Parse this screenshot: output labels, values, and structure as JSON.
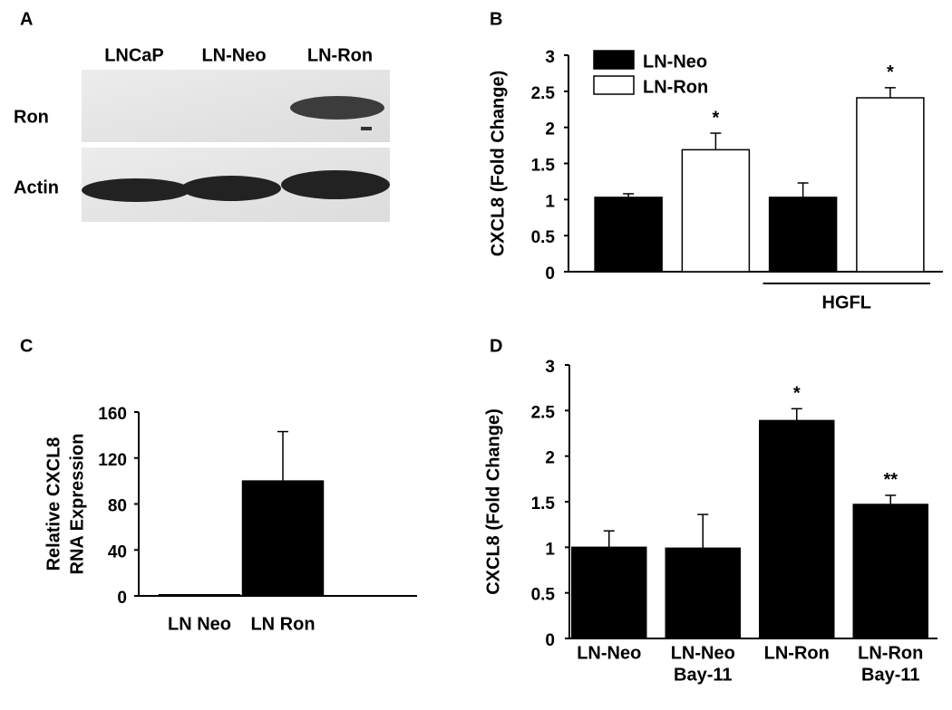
{
  "blot": {
    "panel": "A",
    "lanes": [
      "LNCaP",
      "LN-Neo",
      "LN-Ron"
    ],
    "rows": [
      "Ron",
      "Actin"
    ]
  },
  "chart_data": [
    {
      "type": "bar",
      "panel": "B",
      "ylabel": "CXCL8 (Fold Change)",
      "categories": [
        null,
        "HGFL"
      ],
      "series": [
        {
          "name": "LN-Neo",
          "color": "#000000",
          "values": [
            1.03,
            1.03
          ],
          "errors": [
            0.05,
            0.2
          ],
          "annotations": [
            null,
            null
          ]
        },
        {
          "name": "LN-Ron",
          "color": "#ffffff",
          "values": [
            1.69,
            2.41
          ],
          "errors": [
            0.23,
            0.14
          ],
          "annotations": [
            "*",
            "*"
          ]
        }
      ],
      "ylim": [
        0,
        3
      ],
      "yticks": [
        0,
        0.5,
        1,
        1.5,
        2,
        2.5,
        3
      ],
      "legend": "top-left"
    },
    {
      "type": "bar",
      "panel": "C",
      "ylabel": [
        "Relative CXCL8",
        "RNA Expression"
      ],
      "categories": [
        [
          "LN Neo"
        ],
        [
          "LN Ron"
        ]
      ],
      "series": [
        {
          "color": "#000000",
          "values": [
            1,
            100
          ],
          "errors": [
            null,
            43
          ],
          "annotations": [
            null,
            null
          ]
        }
      ],
      "ylim": [
        0,
        160
      ],
      "yticks": [
        0,
        40,
        80,
        120,
        160
      ]
    },
    {
      "type": "bar",
      "panel": "D",
      "ylabel": "CXCL8 (Fold Change)",
      "categories": [
        [
          "LN-Neo"
        ],
        [
          "LN-Neo",
          "Bay-11"
        ],
        [
          "LN-Ron"
        ],
        [
          "LN-Ron",
          "Bay-11"
        ]
      ],
      "series": [
        {
          "color": "#000000",
          "values": [
            1.0,
            0.99,
            2.39,
            1.47
          ],
          "errors": [
            0.18,
            0.37,
            0.13,
            0.1
          ],
          "annotations": [
            null,
            null,
            "*",
            "**"
          ]
        }
      ],
      "ylim": [
        0,
        3
      ],
      "yticks": [
        0,
        0.5,
        1,
        1.5,
        2,
        2.5,
        3
      ]
    }
  ]
}
